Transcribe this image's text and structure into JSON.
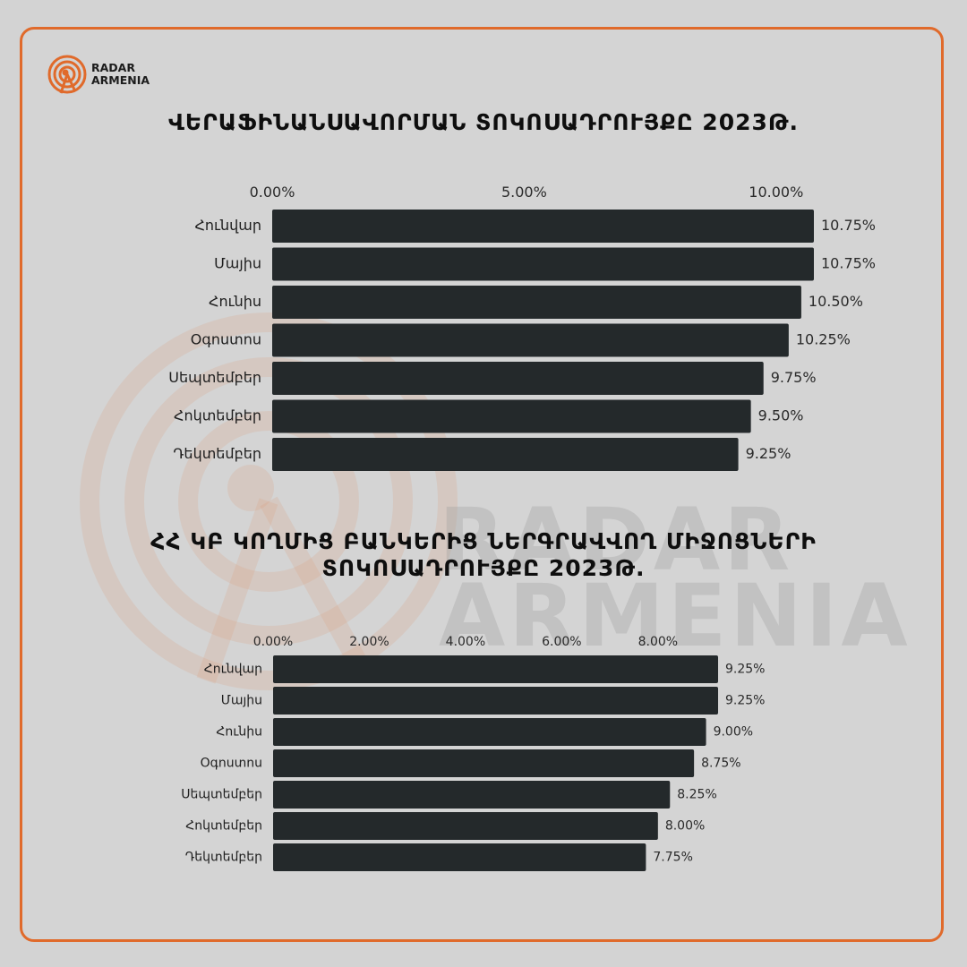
{
  "brand": {
    "line1": "RADAR",
    "line2": "ARMENIA",
    "accent_color": "#e06a2b",
    "icon": "radar-logo-icon"
  },
  "chart_data": [
    {
      "type": "bar",
      "orientation": "horizontal",
      "title": "ՎԵՐԱՖԻՆԱՆՍԱՎՈՐՄԱՆ ՏՈԿՈՍԱԴՐՈՒՅՔԸ 2023Թ.",
      "categories": [
        "Հունվար",
        "Մայիս",
        "Հունիս",
        "Օգոստոս",
        "Սեպտեմբեր",
        "Հոկտեմբեր",
        "Դեկտեմբեր"
      ],
      "values": [
        10.75,
        10.75,
        10.5,
        10.25,
        9.75,
        9.5,
        9.25
      ],
      "value_labels": [
        "10.75%",
        "10.75%",
        "10.50%",
        "10.25%",
        "9.75%",
        "9.50%",
        "9.25%"
      ],
      "x_ticks": [
        0,
        5,
        10
      ],
      "x_tick_labels": [
        "0.00%",
        "5.00%",
        "10.00%"
      ],
      "xlim": [
        0,
        10.75
      ],
      "axis_position": "top",
      "bar_color": "#24292b",
      "grid": false
    },
    {
      "type": "bar",
      "orientation": "horizontal",
      "title_lines": [
        "ՀՀ ԿԲ ԿՈՂՄԻՑ ԲԱՆԿԵՐԻՑ ՆԵՐԳՐԱՎՎՈՂ ՄԻՋՈՑՆԵՐԻ",
        "ՏՈԿՈՍԱԴՐՈՒՅՔԸ 2023Թ."
      ],
      "categories": [
        "Հունվար",
        "Մայիս",
        "Հունիս",
        "Օգոստոս",
        "Սեպտեմբեր",
        "Հոկտեմբեր",
        "Դեկտեմբեր"
      ],
      "values": [
        9.25,
        9.25,
        9.0,
        8.75,
        8.25,
        8.0,
        7.75
      ],
      "value_labels": [
        "9.25%",
        "9.25%",
        "9.00%",
        "8.75%",
        "8.25%",
        "8.00%",
        "7.75%"
      ],
      "x_ticks": [
        0,
        2,
        4,
        6,
        8
      ],
      "x_tick_labels": [
        "0.00%",
        "2.00%",
        "4.00%",
        "6.00%",
        "8.00%"
      ],
      "xlim": [
        0,
        9.25
      ],
      "axis_position": "top",
      "bar_color": "#24292b",
      "grid": false
    }
  ]
}
